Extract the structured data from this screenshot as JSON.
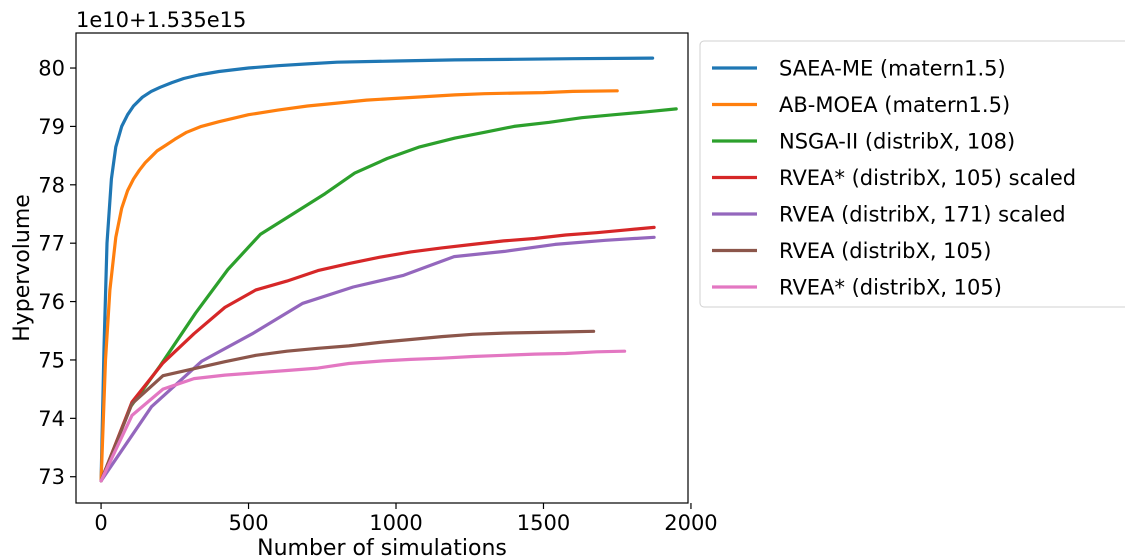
{
  "chart_data": {
    "type": "line",
    "title": "",
    "offset_label": "1e10+1.535e15",
    "xlabel": "Number of simulations",
    "ylabel": "Hypervolume",
    "xlim": [
      -85,
      1990
    ],
    "ylim": [
      72.55,
      80.6
    ],
    "x_ticks": [
      0,
      500,
      1000,
      1500,
      2000
    ],
    "y_ticks": [
      73,
      74,
      75,
      76,
      77,
      78,
      79,
      80
    ],
    "grid": false,
    "legend_placement": "outside right, upper",
    "series": [
      {
        "name": "SAEA-ME (matern1.5)",
        "color": "#1f77b4",
        "x": [
          0,
          10,
          20,
          35,
          50,
          70,
          90,
          110,
          140,
          170,
          200,
          240,
          280,
          330,
          400,
          500,
          600,
          700,
          800,
          1000,
          1200,
          1400,
          1600,
          1870
        ],
        "y": [
          72.93,
          75.2,
          77.0,
          78.1,
          78.65,
          79.0,
          79.2,
          79.35,
          79.5,
          79.6,
          79.67,
          79.75,
          79.82,
          79.88,
          79.94,
          80.0,
          80.04,
          80.07,
          80.1,
          80.12,
          80.14,
          80.15,
          80.16,
          80.17
        ]
      },
      {
        "name": "AB-MOEA (matern1.5)",
        "color": "#ff7f0e",
        "x": [
          0,
          15,
          30,
          50,
          70,
          90,
          110,
          130,
          150,
          170,
          190,
          220,
          250,
          290,
          340,
          400,
          450,
          500,
          600,
          700,
          800,
          900,
          1000,
          1100,
          1200,
          1300,
          1400,
          1500,
          1600,
          1750
        ],
        "y": [
          72.93,
          75.0,
          76.2,
          77.1,
          77.6,
          77.9,
          78.1,
          78.25,
          78.38,
          78.48,
          78.58,
          78.68,
          78.78,
          78.9,
          79.0,
          79.08,
          79.14,
          79.2,
          79.28,
          79.35,
          79.4,
          79.45,
          79.48,
          79.51,
          79.54,
          79.56,
          79.57,
          79.58,
          79.6,
          79.61
        ]
      },
      {
        "name": "NSGA-II (distribX, 108)",
        "color": "#2ca02c",
        "x": [
          0,
          100,
          200,
          320,
          430,
          540,
          650,
          760,
          860,
          970,
          1080,
          1200,
          1300,
          1400,
          1520,
          1630,
          1740,
          1850,
          1950
        ],
        "y": [
          72.93,
          74.2,
          74.9,
          75.8,
          76.55,
          77.15,
          77.5,
          77.85,
          78.2,
          78.45,
          78.65,
          78.8,
          78.9,
          79.0,
          79.07,
          79.15,
          79.2,
          79.25,
          79.3
        ]
      },
      {
        "name": "RVEA* (distribX, 105) scaled",
        "color": "#d62728",
        "x": [
          0,
          105,
          210,
          315,
          420,
          525,
          630,
          735,
          840,
          945,
          1050,
          1155,
          1260,
          1365,
          1470,
          1575,
          1680,
          1785,
          1875
        ],
        "y": [
          72.93,
          74.28,
          74.95,
          75.45,
          75.9,
          76.2,
          76.35,
          76.53,
          76.65,
          76.76,
          76.85,
          76.92,
          76.98,
          77.04,
          77.08,
          77.14,
          77.18,
          77.23,
          77.27
        ]
      },
      {
        "name": "RVEA (distribX, 171) scaled",
        "color": "#9467bd",
        "x": [
          0,
          171,
          342,
          513,
          684,
          855,
          1026,
          1197,
          1368,
          1539,
          1710,
          1875
        ],
        "y": [
          72.93,
          74.2,
          74.98,
          75.45,
          75.97,
          76.25,
          76.45,
          76.77,
          76.86,
          76.98,
          77.05,
          77.1
        ]
      },
      {
        "name": "RVEA (distribX, 105)",
        "color": "#8c564b",
        "x": [
          0,
          105,
          210,
          315,
          420,
          525,
          630,
          735,
          840,
          945,
          1050,
          1155,
          1260,
          1365,
          1470,
          1575,
          1670
        ],
        "y": [
          72.93,
          74.25,
          74.73,
          74.85,
          74.97,
          75.08,
          75.15,
          75.2,
          75.24,
          75.3,
          75.35,
          75.4,
          75.44,
          75.46,
          75.47,
          75.48,
          75.49
        ]
      },
      {
        "name": "RVEA* (distribX, 105)",
        "color": "#e377c2",
        "x": [
          0,
          105,
          210,
          315,
          420,
          525,
          630,
          735,
          840,
          945,
          1050,
          1155,
          1260,
          1365,
          1470,
          1575,
          1680,
          1775
        ],
        "y": [
          72.93,
          74.05,
          74.5,
          74.68,
          74.74,
          74.78,
          74.82,
          74.86,
          74.94,
          74.98,
          75.01,
          75.03,
          75.06,
          75.08,
          75.1,
          75.11,
          75.14,
          75.15
        ]
      }
    ]
  }
}
